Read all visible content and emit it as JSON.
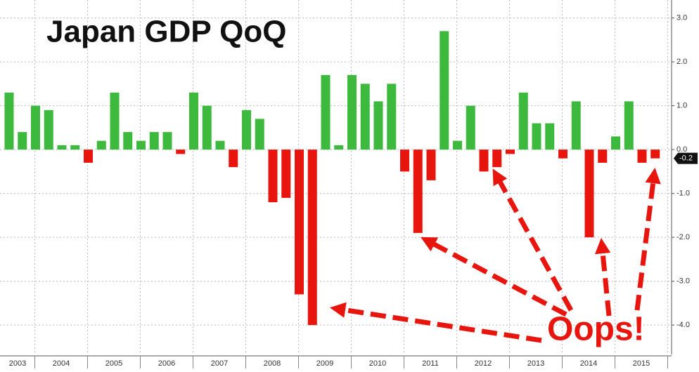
{
  "chart_data": {
    "type": "bar",
    "title": "Japan GDP QoQ",
    "annotation": "Oops!",
    "years": [
      "2003",
      "2004",
      "2005",
      "2006",
      "2007",
      "2008",
      "2009",
      "2010",
      "2011",
      "2012",
      "2013",
      "2014",
      "2015"
    ],
    "values": [
      1.3,
      0.4,
      1.0,
      0.9,
      0.1,
      0.1,
      -0.3,
      0.2,
      1.3,
      0.4,
      0.2,
      0.4,
      0.4,
      -0.1,
      1.3,
      1.0,
      0.2,
      -0.4,
      0.9,
      0.7,
      -1.2,
      -1.1,
      -3.3,
      -4.0,
      1.7,
      0.1,
      1.7,
      1.5,
      1.1,
      1.5,
      -0.5,
      -1.9,
      -0.7,
      2.7,
      0.2,
      1.0,
      -0.5,
      -0.4,
      -0.1,
      1.3,
      0.6,
      0.6,
      -0.2,
      1.1,
      -2.0,
      -0.3,
      0.3,
      1.1,
      -0.3,
      -0.2
    ],
    "positive_color": "#3dba3d",
    "negative_color": "#e8140e",
    "ylim": [
      -4.67,
      3.41
    ],
    "yticks": [
      {
        "value": 3,
        "label": "3.0"
      },
      {
        "value": 2,
        "label": "2.0"
      },
      {
        "value": 1,
        "label": "1.0"
      },
      {
        "value": 0,
        "label": "0.0"
      },
      {
        "value": -1,
        "label": "-1.0"
      },
      {
        "value": -2,
        "label": "-2.0"
      },
      {
        "value": -3,
        "label": "-3.0"
      },
      {
        "value": -4,
        "label": "-4.0"
      }
    ],
    "grid": true
  }
}
